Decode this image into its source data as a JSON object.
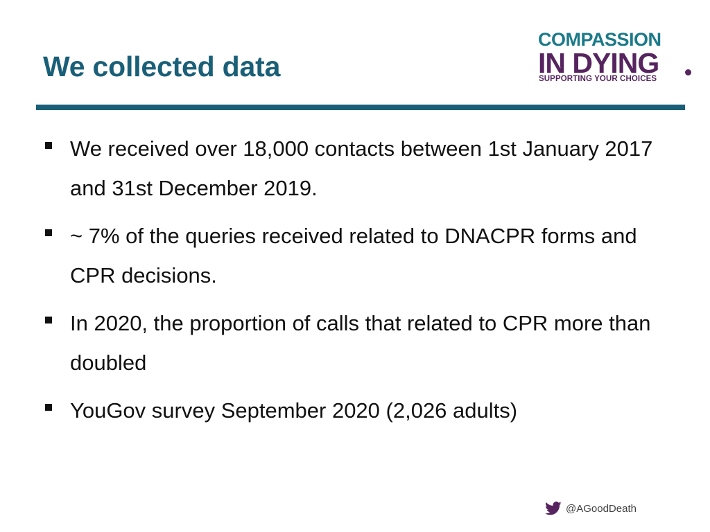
{
  "slide": {
    "title": "We collected data",
    "bullets": [
      "We received over 18,000 contacts between 1st January 2017 and 31st December 2019.",
      "~ 7%  of the queries received related to DNACPR forms and CPR decisions.",
      "In 2020, the proportion of calls that related to CPR more than doubled",
      "YouGov survey September 2020 (2,026 adults)"
    ]
  },
  "logo": {
    "line1": "COMPASSION",
    "line2": "IN DYING",
    "line3": "SUPPORTING YOUR CHOICES",
    "teal_color": "#1b7a89",
    "purple_color": "#56245f"
  },
  "footer": {
    "icon": "twitter-icon",
    "handle": "@AGoodDeath"
  },
  "colors": {
    "title": "#1a5f78",
    "rule": "#1a5f78",
    "text": "#111111",
    "twitter": "#56245f"
  }
}
